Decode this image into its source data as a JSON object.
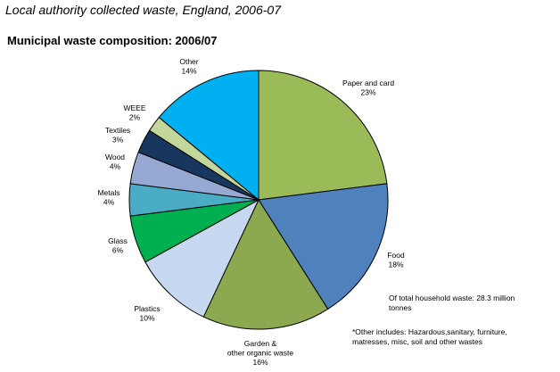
{
  "page_heading": "Local authority collected waste, England, 2006-07",
  "chart_data": {
    "type": "pie",
    "title": "Municipal waste composition: 2006/07",
    "slices": [
      {
        "label_lines": [
          "Paper and card"
        ],
        "value": 23,
        "value_label": "23%",
        "color": "#9BBB59"
      },
      {
        "label_lines": [
          "Food"
        ],
        "value": 18,
        "value_label": "18%",
        "color": "#4F81BD"
      },
      {
        "label_lines": [
          "Garden &",
          "other organic waste"
        ],
        "value": 16,
        "value_label": "16%",
        "color": "#8CA94F"
      },
      {
        "label_lines": [
          "Plastics"
        ],
        "value": 10,
        "value_label": "10%",
        "color": "#C6D9F1"
      },
      {
        "label_lines": [
          "Glass"
        ],
        "value": 6,
        "value_label": "6%",
        "color": "#00B050"
      },
      {
        "label_lines": [
          "Metals"
        ],
        "value": 4,
        "value_label": "4%",
        "color": "#4BACC6"
      },
      {
        "label_lines": [
          "Wood"
        ],
        "value": 4,
        "value_label": "4%",
        "color": "#95A9D3"
      },
      {
        "label_lines": [
          "Textiles"
        ],
        "value": 3,
        "value_label": "3%",
        "color": "#17375E"
      },
      {
        "label_lines": [
          "WEEE"
        ],
        "value": 2,
        "value_label": "2%",
        "color": "#C4D79B"
      },
      {
        "label_lines": [
          "Other"
        ],
        "value": 14,
        "value_label": "14%",
        "color": "#00B0F0"
      }
    ],
    "notes": {
      "total": "Of total household waste: 28.3 million tonnes",
      "other": "*Other includes: Hazardous,sanitary, furniture, matresses, misc, soil and other wastes"
    }
  }
}
